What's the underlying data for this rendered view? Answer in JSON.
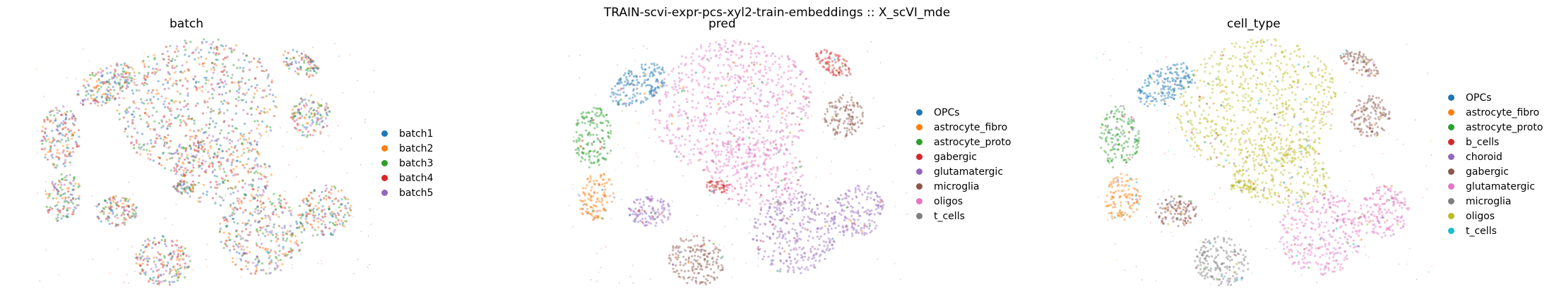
{
  "figure": {
    "title": "TRAIN-scvi-expr-pcs-xyl2-train-embeddings :: X_scVI_mde"
  },
  "chart_data": [
    {
      "type": "scatter",
      "title": "batch",
      "xlabel": "",
      "ylabel": "",
      "axes_visible": false,
      "legend_placement": "right",
      "categories": [
        "batch1",
        "batch2",
        "batch3",
        "batch4",
        "batch5"
      ],
      "colors": [
        "#1f77b4",
        "#ff7f0e",
        "#2ca02c",
        "#d62728",
        "#9467bd"
      ]
    },
    {
      "type": "scatter",
      "title": "pred",
      "xlabel": "",
      "ylabel": "",
      "axes_visible": false,
      "legend_placement": "right",
      "categories": [
        "OPCs",
        "astrocyte_fibro",
        "astrocyte_proto",
        "gabergic",
        "glutamatergic",
        "microglia",
        "oligos",
        "t_cells"
      ],
      "colors": [
        "#1f77b4",
        "#ff7f0e",
        "#2ca02c",
        "#d62728",
        "#9467bd",
        "#8c564b",
        "#e377c2",
        "#7f7f7f"
      ]
    },
    {
      "type": "scatter",
      "title": "cell_type",
      "xlabel": "",
      "ylabel": "",
      "axes_visible": false,
      "legend_placement": "right",
      "categories": [
        "OPCs",
        "astrocyte_fibro",
        "astrocyte_proto",
        "b_cells",
        "choroid",
        "gabergic",
        "glutamatergic",
        "microglia",
        "oligos",
        "t_cells"
      ],
      "colors": [
        "#1f77b4",
        "#ff7f0e",
        "#2ca02c",
        "#d62728",
        "#9467bd",
        "#8c564b",
        "#e377c2",
        "#7f7f7f",
        "#bcbd22",
        "#17becf"
      ]
    }
  ]
}
